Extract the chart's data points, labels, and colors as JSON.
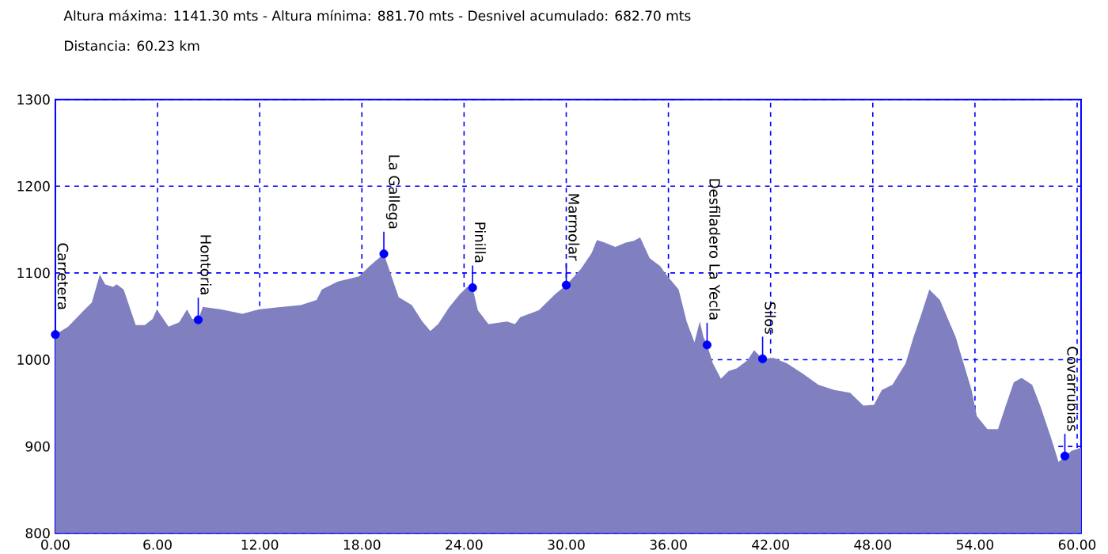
{
  "chart_data": {
    "type": "area",
    "title": "Altura máxima: 1141.30 mts - Altura mínima: 881.70 mts - Desnivel acumulado: 682.70 mts",
    "subtitle": "Distancia: 60.23 km",
    "series": [
      {
        "color": "#8080c0",
        "x": [
          0.0,
          0.75,
          1.68,
          2.14,
          2.61,
          2.92,
          3.39,
          3.6,
          4.01,
          4.32,
          4.72,
          5.25,
          5.71,
          5.96,
          6.34,
          6.65,
          7.27,
          7.73,
          8.04,
          8.39,
          8.66,
          9.75,
          10.99,
          11.93,
          12.86,
          14.41,
          15.34,
          15.65,
          16.58,
          17.83,
          18.45,
          19.29,
          19.69,
          20.16,
          20.93,
          21.55,
          22.02,
          22.48,
          23.11,
          23.73,
          24.19,
          24.5,
          24.81,
          25.43,
          26.52,
          26.99,
          27.3,
          28.39,
          29.32,
          30.0,
          30.87,
          31.49,
          31.8,
          32.26,
          32.88,
          33.5,
          33.97,
          34.34,
          34.9,
          35.52,
          35.83,
          36.6,
          37.07,
          37.53,
          37.84,
          38.06,
          38.27,
          38.61,
          39.08,
          39.54,
          40.01,
          40.63,
          41.03,
          41.53,
          42.18,
          42.95,
          43.88,
          44.81,
          45.74,
          46.67,
          47.45,
          48.07,
          48.53,
          49.15,
          49.93,
          50.39,
          50.86,
          51.32,
          51.94,
          52.87,
          53.33,
          53.8,
          54.11,
          54.73,
          55.35,
          55.81,
          56.28,
          56.74,
          57.36,
          57.83,
          58.45,
          58.91,
          59.28,
          59.69,
          60.15,
          60.23
        ],
        "values": [
          1029,
          1038,
          1057,
          1066,
          1098,
          1087,
          1084,
          1087,
          1081,
          1063,
          1040,
          1040,
          1047,
          1058,
          1047,
          1038,
          1043,
          1058,
          1047,
          1046,
          1061,
          1058,
          1053,
          1058,
          1060,
          1063,
          1069,
          1081,
          1090,
          1096,
          1108,
          1122,
          1099,
          1072,
          1063,
          1044,
          1033,
          1041,
          1060,
          1075,
          1084,
          1083,
          1057,
          1041,
          1044,
          1041,
          1049,
          1057,
          1075,
          1086,
          1105,
          1123,
          1138,
          1135,
          1130,
          1135,
          1137,
          1141,
          1117,
          1108,
          1099,
          1081,
          1044,
          1020,
          1044,
          1026,
          1017,
          996,
          978,
          987,
          990,
          999,
          1011,
          1001,
          1002,
          996,
          984,
          971,
          965,
          962,
          947,
          948,
          965,
          971,
          996,
          1026,
          1053,
          1081,
          1069,
          1026,
          996,
          965,
          935,
          920,
          920,
          947,
          974,
          979,
          971,
          947,
          911,
          882,
          889,
          895,
          898,
          898
        ]
      },
      {
        "type": "scatter",
        "color": "#0000ff",
        "marker": "circle",
        "x": [
          0.0,
          8.39,
          19.29,
          24.5,
          30.0,
          38.27,
          41.53,
          59.28
        ],
        "values": [
          1029,
          1046,
          1122,
          1083,
          1086,
          1017,
          1001,
          889
        ]
      }
    ],
    "annotations": [
      {
        "text": "Carretera",
        "x": 0.0,
        "y": 1029
      },
      {
        "text": "Hontoria",
        "x": 8.39,
        "y": 1046
      },
      {
        "text": "La Gallega",
        "x": 19.29,
        "y": 1122
      },
      {
        "text": "Pinilla",
        "x": 24.5,
        "y": 1083
      },
      {
        "text": "Marmolar",
        "x": 30.0,
        "y": 1086
      },
      {
        "text": "Desfiladero La Yecla",
        "x": 38.27,
        "y": 1017
      },
      {
        "text": "Silos",
        "x": 41.53,
        "y": 1001
      },
      {
        "text": "Covarrubias",
        "x": 59.28,
        "y": 889
      }
    ],
    "xlim": [
      0,
      60.23
    ],
    "ylim": [
      800,
      1300
    ],
    "xticks": [
      {
        "value": 0,
        "label": "0.00"
      },
      {
        "value": 6,
        "label": "6.00"
      },
      {
        "value": 12,
        "label": "12.00"
      },
      {
        "value": 18,
        "label": "18.00"
      },
      {
        "value": 24,
        "label": "24.00"
      },
      {
        "value": 30,
        "label": "30.00"
      },
      {
        "value": 36,
        "label": "36.00"
      },
      {
        "value": 42,
        "label": "42.00"
      },
      {
        "value": 48,
        "label": "48.00"
      },
      {
        "value": 54,
        "label": "54.00"
      },
      {
        "value": 60,
        "label": "60.00"
      }
    ],
    "yticks": [
      800,
      900,
      1000,
      1100,
      1200,
      1300
    ],
    "grid": true
  }
}
